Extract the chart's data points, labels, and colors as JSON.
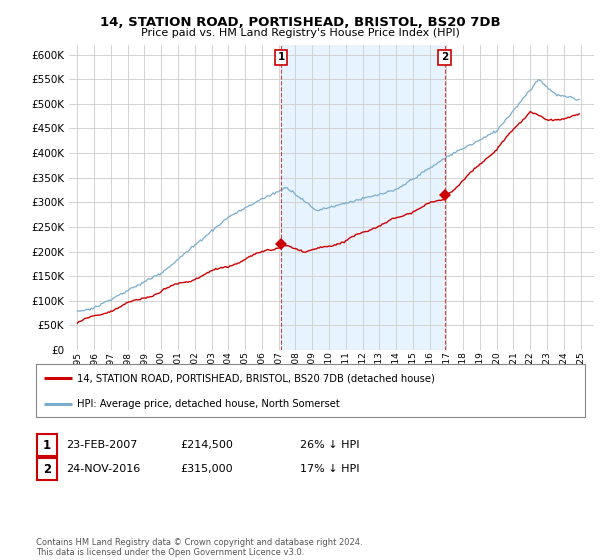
{
  "title": "14, STATION ROAD, PORTISHEAD, BRISTOL, BS20 7DB",
  "subtitle": "Price paid vs. HM Land Registry's House Price Index (HPI)",
  "property_label": "14, STATION ROAD, PORTISHEAD, BRISTOL, BS20 7DB (detached house)",
  "hpi_label": "HPI: Average price, detached house, North Somerset",
  "footer": "Contains HM Land Registry data © Crown copyright and database right 2024.\nThis data is licensed under the Open Government Licence v3.0.",
  "annotation1": {
    "num": "1",
    "date": "23-FEB-2007",
    "price": "£214,500",
    "pct": "26% ↓ HPI"
  },
  "annotation2": {
    "num": "2",
    "date": "24-NOV-2016",
    "price": "£315,000",
    "pct": "17% ↓ HPI"
  },
  "vline1_x": 2007.14,
  "vline2_x": 2016.9,
  "sale1_x": 2007.14,
  "sale1_y": 214500,
  "sale2_x": 2016.9,
  "sale2_y": 315000,
  "property_color": "#cc0000",
  "hpi_color": "#7aadcc",
  "shade_color": "#ddeeff",
  "ylim": [
    0,
    620000
  ],
  "yticks": [
    0,
    50000,
    100000,
    150000,
    200000,
    250000,
    300000,
    350000,
    400000,
    450000,
    500000,
    550000,
    600000
  ],
  "xlim_min": 1994.5,
  "xlim_max": 2025.8,
  "bg_color": "#ffffff",
  "plot_bg_color": "#ffffff",
  "grid_color": "#cccccc"
}
